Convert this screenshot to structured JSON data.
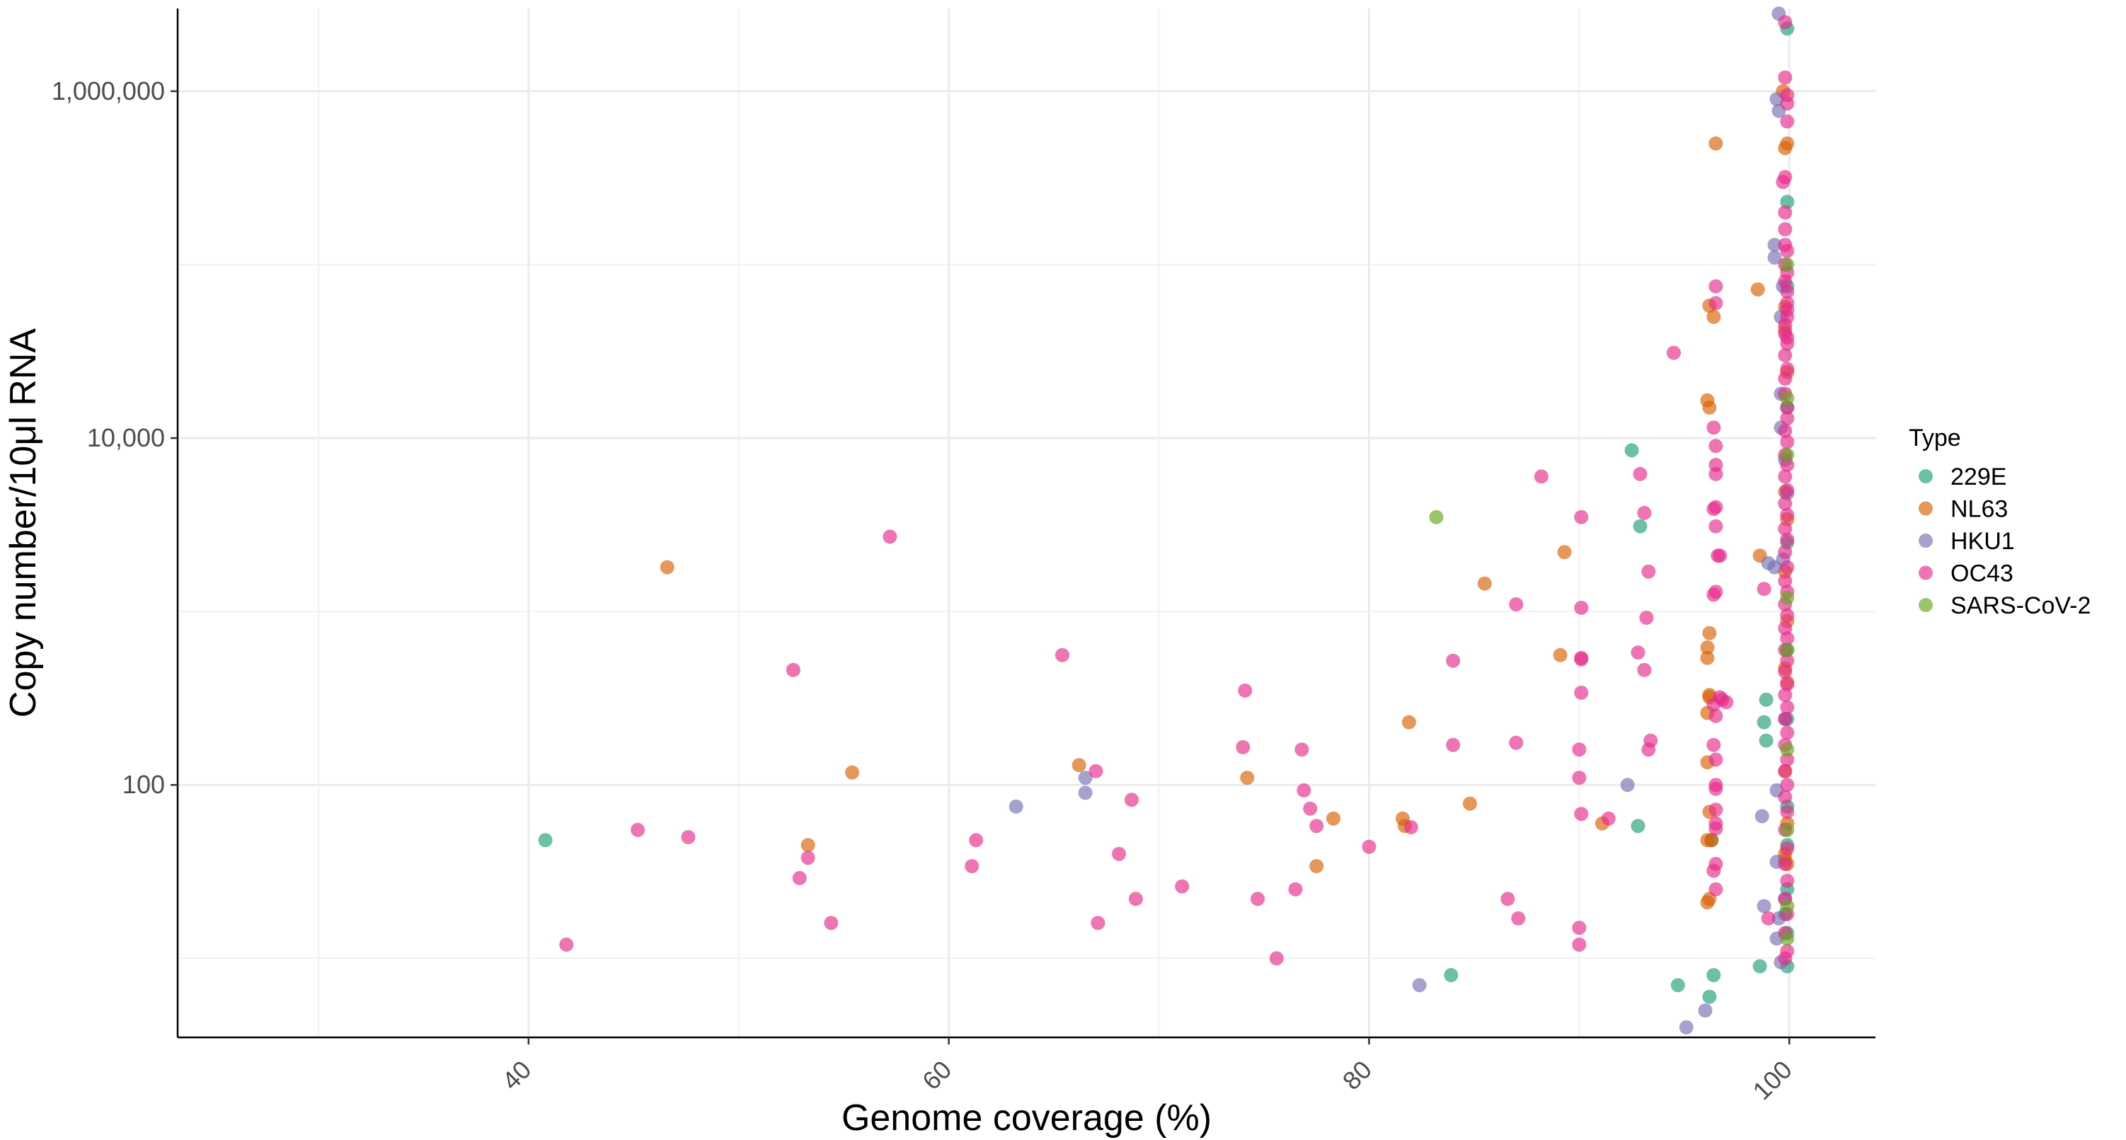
{
  "chart_data": {
    "type": "scatter",
    "xlabel": "Genome coverage (%)",
    "ylabel": "Copy number/10μl RNA",
    "x_scale": "linear",
    "y_scale": "log10",
    "xlim": [
      23.3,
      104.1
    ],
    "ylim": [
      3.5,
      3000000
    ],
    "x_major_ticks": [
      40,
      60,
      80,
      100
    ],
    "x_minor_ticks": [
      30,
      50,
      70,
      90
    ],
    "x_tick_labels": [
      "40",
      "60",
      "80",
      "100"
    ],
    "y_major_ticks": [
      100,
      10000,
      1000000
    ],
    "y_minor_ticks": [
      10,
      1000,
      100000
    ],
    "y_tick_labels": [
      "100",
      "10,000",
      "1,000,000"
    ],
    "grid": true,
    "legend_title": "Type",
    "legend_position": "right",
    "point_opacity": 0.65,
    "series": [
      {
        "name": "229E",
        "color": "#1b9e77",
        "points": [
          [
            40.8,
            48
          ],
          [
            83.9,
            8
          ],
          [
            92.5,
            8500
          ],
          [
            92.9,
            3100
          ],
          [
            92.8,
            58
          ],
          [
            94.7,
            7
          ],
          [
            96.2,
            6
          ],
          [
            96.4,
            8
          ],
          [
            96.3,
            48
          ],
          [
            98.6,
            9
          ],
          [
            98.8,
            230
          ],
          [
            98.9,
            310
          ],
          [
            98.9,
            180
          ],
          [
            99.9,
            2300000
          ],
          [
            99.9,
            230000
          ],
          [
            99.9,
            75000
          ],
          [
            99.9,
            15000
          ],
          [
            99.9,
            2500
          ],
          [
            99.9,
            600
          ],
          [
            99.9,
            240
          ],
          [
            99.9,
            75
          ],
          [
            99.9,
            45
          ],
          [
            99.9,
            25
          ],
          [
            99.9,
            9
          ],
          [
            99.8,
            18
          ],
          [
            99.9,
            14
          ]
        ]
      },
      {
        "name": "NL63",
        "color": "#d95f02",
        "points": [
          [
            46.6,
            1800
          ],
          [
            53.3,
            45
          ],
          [
            55.4,
            118
          ],
          [
            66.2,
            130
          ],
          [
            74.2,
            110
          ],
          [
            77.5,
            34
          ],
          [
            78.3,
            64
          ],
          [
            81.9,
            230
          ],
          [
            81.6,
            64
          ],
          [
            81.7,
            58
          ],
          [
            84.8,
            78
          ],
          [
            85.5,
            1450
          ],
          [
            89.1,
            560
          ],
          [
            89.3,
            2200
          ],
          [
            91.1,
            60
          ],
          [
            96.5,
            500000
          ],
          [
            96.1,
            16500
          ],
          [
            96.2,
            15000
          ],
          [
            96.2,
            750
          ],
          [
            96.1,
            620
          ],
          [
            96.1,
            540
          ],
          [
            96.2,
            330
          ],
          [
            96.2,
            320
          ],
          [
            96.1,
            260
          ],
          [
            96.1,
            135
          ],
          [
            96.2,
            70
          ],
          [
            96.1,
            48
          ],
          [
            96.1,
            21
          ],
          [
            96.2,
            22
          ],
          [
            96.3,
            48
          ],
          [
            96.4,
            50000
          ],
          [
            96.2,
            58000
          ],
          [
            98.5,
            72000
          ],
          [
            98.6,
            2100
          ],
          [
            99.8,
            470000
          ],
          [
            99.9,
            500000
          ],
          [
            99.7,
            1000000
          ],
          [
            99.8,
            57000
          ],
          [
            99.8,
            42000
          ],
          [
            99.9,
            24000
          ],
          [
            99.8,
            4900
          ],
          [
            99.9,
            3400
          ],
          [
            99.8,
            1700
          ],
          [
            99.9,
            880
          ],
          [
            99.8,
            470
          ],
          [
            99.9,
            390
          ],
          [
            99.8,
            120
          ],
          [
            99.9,
            60
          ],
          [
            99.8,
            40
          ],
          [
            99.9,
            35
          ],
          [
            99.8,
            37
          ]
        ]
      },
      {
        "name": "HKU1",
        "color": "#7570b3",
        "points": [
          [
            63.2,
            75
          ],
          [
            66.5,
            110
          ],
          [
            66.5,
            90
          ],
          [
            82.4,
            7
          ],
          [
            92.3,
            100
          ],
          [
            95.1,
            4
          ],
          [
            96.0,
            5
          ],
          [
            98.7,
            66
          ],
          [
            98.8,
            20
          ],
          [
            99.0,
            1900
          ],
          [
            99.3,
            1800
          ],
          [
            99.4,
            36
          ],
          [
            99.5,
            17
          ],
          [
            99.4,
            13
          ],
          [
            99.4,
            900000
          ],
          [
            99.3,
            130000
          ],
          [
            99.3,
            110000
          ],
          [
            99.5,
            2800000
          ],
          [
            99.5,
            770000
          ],
          [
            99.7,
            75000
          ],
          [
            99.6,
            50000
          ],
          [
            99.6,
            18000
          ],
          [
            99.6,
            11500
          ],
          [
            99.8,
            7500
          ],
          [
            99.9,
            4800
          ],
          [
            99.7,
            2000
          ],
          [
            99.8,
            240
          ],
          [
            99.4,
            93
          ],
          [
            99.6,
            9.5
          ],
          [
            99.8,
            22
          ]
        ]
      },
      {
        "name": "OC43",
        "color": "#e7298a",
        "points": [
          [
            41.8,
            12
          ],
          [
            45.2,
            55
          ],
          [
            47.6,
            50
          ],
          [
            52.6,
            460
          ],
          [
            52.9,
            29
          ],
          [
            53.3,
            38
          ],
          [
            54.4,
            16
          ],
          [
            57.2,
            2700
          ],
          [
            61.3,
            48
          ],
          [
            61.1,
            34
          ],
          [
            65.4,
            560
          ],
          [
            67.0,
            120
          ],
          [
            67.1,
            16
          ],
          [
            68.1,
            40
          ],
          [
            68.7,
            82
          ],
          [
            68.9,
            22
          ],
          [
            71.1,
            26
          ],
          [
            74.0,
            165
          ],
          [
            74.1,
            350
          ],
          [
            74.7,
            22
          ],
          [
            75.6,
            10
          ],
          [
            76.5,
            25
          ],
          [
            76.8,
            160
          ],
          [
            76.9,
            93
          ],
          [
            77.2,
            73
          ],
          [
            77.5,
            58
          ],
          [
            80.0,
            44
          ],
          [
            82.0,
            57
          ],
          [
            84.0,
            520
          ],
          [
            84.0,
            170
          ],
          [
            86.6,
            22
          ],
          [
            87.0,
            1100
          ],
          [
            87.0,
            175
          ],
          [
            87.1,
            17
          ],
          [
            88.2,
            6000
          ],
          [
            90.1,
            3500
          ],
          [
            90.1,
            1050
          ],
          [
            90.1,
            540
          ],
          [
            90.1,
            530
          ],
          [
            90.1,
            340
          ],
          [
            90.0,
            160
          ],
          [
            90.0,
            110
          ],
          [
            90.1,
            68
          ],
          [
            90.0,
            15
          ],
          [
            90.0,
            12
          ],
          [
            91.4,
            64
          ],
          [
            92.9,
            6200
          ],
          [
            93.1,
            3700
          ],
          [
            93.3,
            1700
          ],
          [
            93.2,
            920
          ],
          [
            93.1,
            460
          ],
          [
            93.4,
            180
          ],
          [
            93.3,
            160
          ],
          [
            92.8,
            580
          ],
          [
            94.5,
            31000
          ],
          [
            96.5,
            75000
          ],
          [
            96.5,
            60000
          ],
          [
            96.4,
            11500
          ],
          [
            96.5,
            9000
          ],
          [
            96.5,
            7000
          ],
          [
            96.5,
            6200
          ],
          [
            96.5,
            4000
          ],
          [
            96.4,
            3900
          ],
          [
            96.5,
            3100
          ],
          [
            96.6,
            2100
          ],
          [
            96.7,
            2100
          ],
          [
            96.4,
            1250
          ],
          [
            96.5,
            1300
          ],
          [
            96.7,
            320
          ],
          [
            96.4,
            290
          ],
          [
            96.5,
            250
          ],
          [
            96.4,
            170
          ],
          [
            96.5,
            140
          ],
          [
            96.5,
            100
          ],
          [
            96.5,
            95
          ],
          [
            96.5,
            72
          ],
          [
            96.5,
            60
          ],
          [
            96.5,
            56
          ],
          [
            96.5,
            35
          ],
          [
            96.4,
            32
          ],
          [
            96.5,
            25
          ],
          [
            96.8,
            310
          ],
          [
            97.0,
            300
          ],
          [
            98.8,
            1350
          ],
          [
            99.0,
            17
          ],
          [
            99.8,
            2500000
          ],
          [
            99.8,
            1200000
          ],
          [
            99.9,
            950000
          ],
          [
            99.9,
            850000
          ],
          [
            99.9,
            670000
          ],
          [
            99.7,
            300000
          ],
          [
            99.8,
            200000
          ],
          [
            99.8,
            160000
          ],
          [
            99.8,
            130000
          ],
          [
            99.9,
            120000
          ],
          [
            99.8,
            100000
          ],
          [
            99.9,
            90000
          ],
          [
            99.8,
            80000
          ],
          [
            99.9,
            70000
          ],
          [
            99.9,
            60000
          ],
          [
            99.9,
            50000
          ],
          [
            99.8,
            45000
          ],
          [
            99.8,
            40000
          ],
          [
            99.9,
            38000
          ],
          [
            99.9,
            35000
          ],
          [
            99.8,
            30000
          ],
          [
            99.9,
            25000
          ],
          [
            99.8,
            22000
          ],
          [
            99.8,
            18000
          ],
          [
            99.9,
            15000
          ],
          [
            99.9,
            13000
          ],
          [
            99.8,
            11000
          ],
          [
            99.9,
            9500
          ],
          [
            99.8,
            8000
          ],
          [
            99.9,
            7000
          ],
          [
            99.8,
            6000
          ],
          [
            99.9,
            5000
          ],
          [
            99.8,
            4200
          ],
          [
            99.9,
            3600
          ],
          [
            99.8,
            3000
          ],
          [
            99.9,
            2600
          ],
          [
            99.8,
            2200
          ],
          [
            99.9,
            1800
          ],
          [
            99.8,
            1500
          ],
          [
            99.9,
            1300
          ],
          [
            99.8,
            1100
          ],
          [
            99.9,
            950
          ],
          [
            99.8,
            800
          ],
          [
            99.9,
            700
          ],
          [
            99.8,
            600
          ],
          [
            99.9,
            520
          ],
          [
            99.8,
            450
          ],
          [
            99.9,
            380
          ],
          [
            99.8,
            330
          ],
          [
            99.9,
            280
          ],
          [
            99.8,
            240
          ],
          [
            99.9,
            200
          ],
          [
            99.8,
            170
          ],
          [
            99.9,
            140
          ],
          [
            99.8,
            120
          ],
          [
            99.9,
            100
          ],
          [
            99.8,
            85
          ],
          [
            99.9,
            70
          ],
          [
            99.8,
            55
          ],
          [
            99.9,
            43
          ],
          [
            99.8,
            35
          ],
          [
            99.9,
            28
          ],
          [
            99.8,
            22
          ],
          [
            99.9,
            18
          ],
          [
            99.8,
            14
          ],
          [
            99.9,
            11
          ],
          [
            99.8,
            10
          ],
          [
            99.8,
            320000
          ],
          [
            99.9,
            55000
          ]
        ]
      },
      {
        "name": "SARS-CoV-2",
        "color": "#66a61e",
        "points": [
          [
            83.2,
            3500
          ],
          [
            99.9,
            100000
          ],
          [
            99.9,
            17000
          ],
          [
            99.9,
            8000
          ],
          [
            99.9,
            1200
          ],
          [
            99.9,
            600
          ],
          [
            99.9,
            160
          ],
          [
            99.9,
            55
          ],
          [
            99.9,
            20
          ],
          [
            99.9,
            13
          ]
        ]
      }
    ]
  }
}
